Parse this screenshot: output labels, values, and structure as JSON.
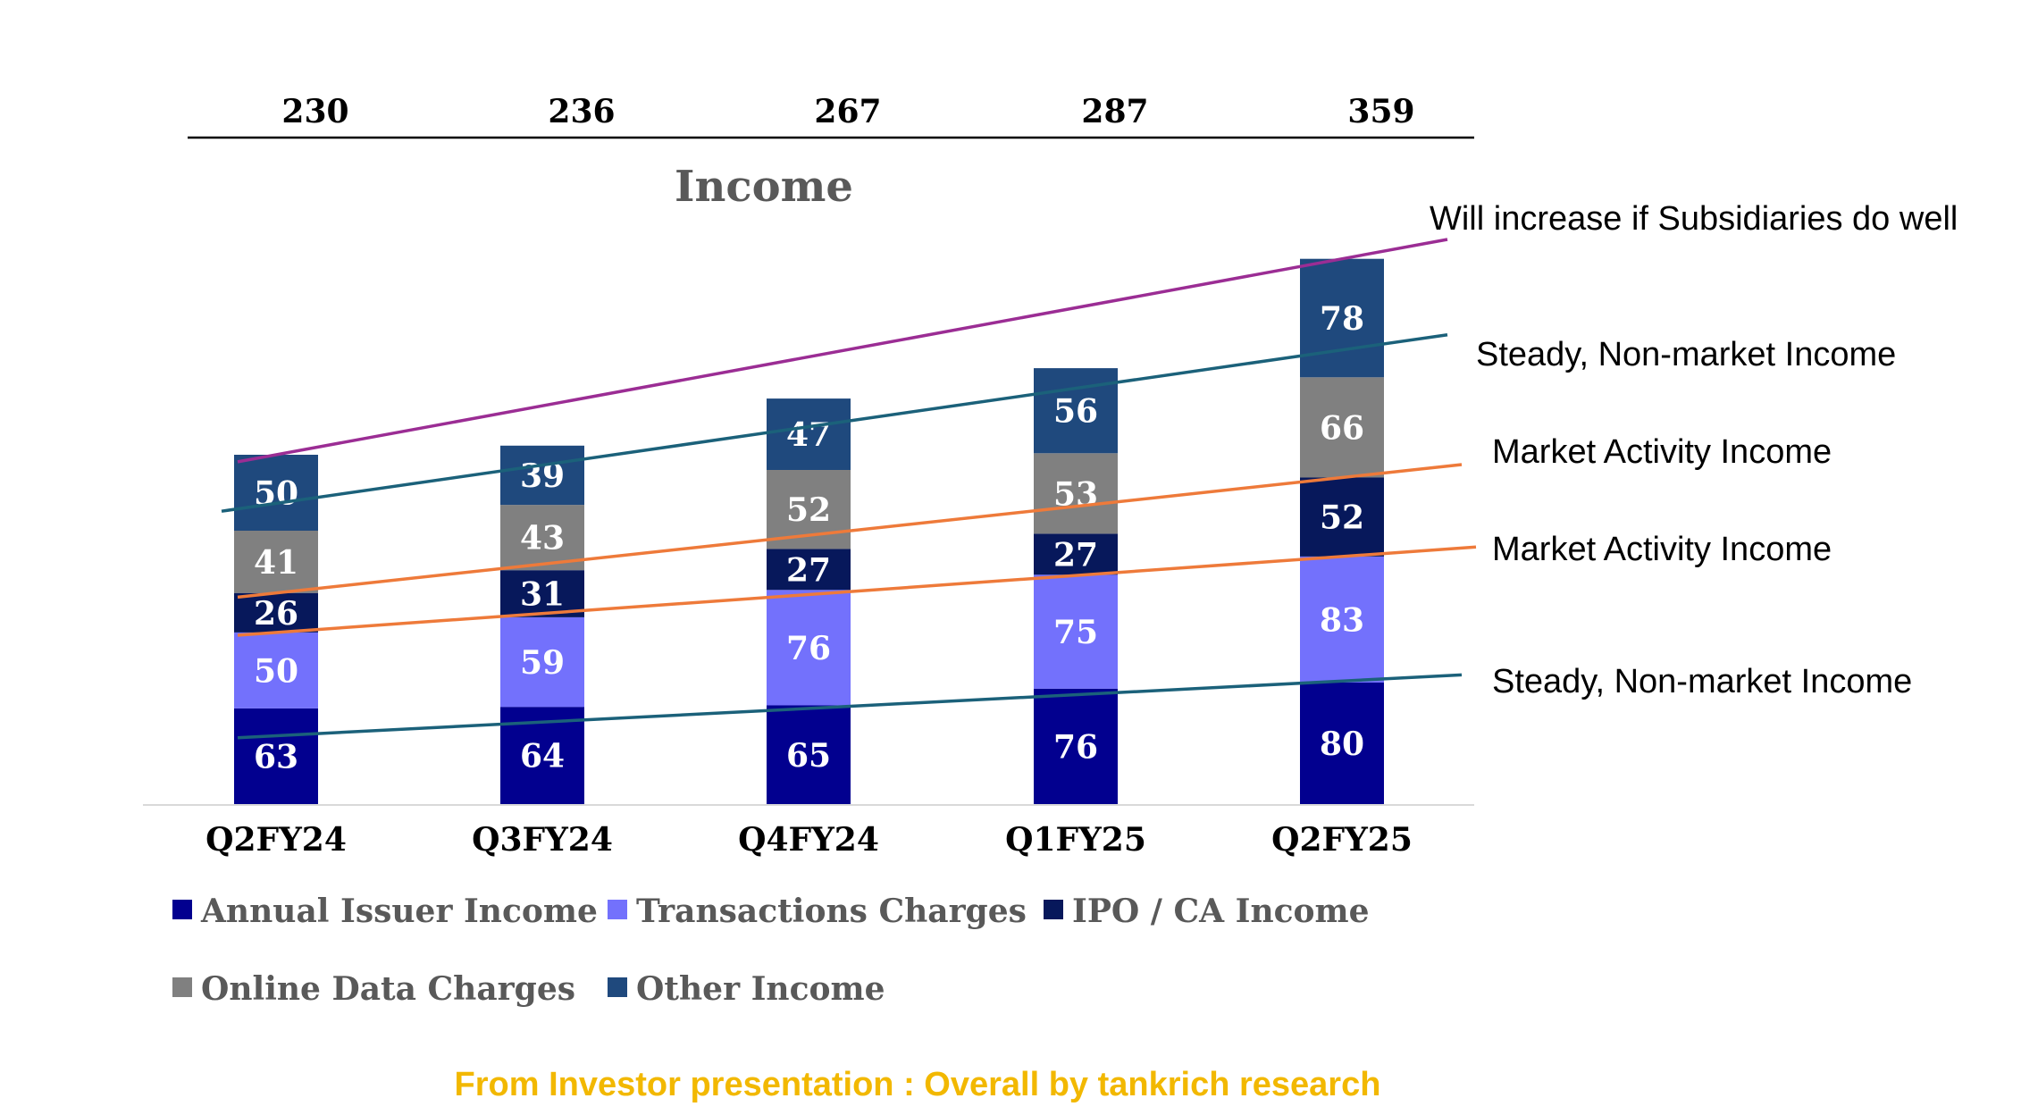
{
  "colors": {
    "annual": "#02008f",
    "transactions": "#7371fc",
    "ipo": "#07185b",
    "online": "#808080",
    "other": "#1f497d",
    "trend_purple": "#9b2d94",
    "trend_teal": "#1b617a",
    "trend_orange": "#ee7a3a",
    "caption": "#f2b800"
  },
  "chart_data": {
    "type": "bar",
    "stacked": true,
    "title": "Income",
    "categories": [
      "Q2FY24",
      "Q3FY24",
      "Q4FY24",
      "Q1FY25",
      "Q2FY25"
    ],
    "totals": [
      "230",
      "236",
      "267",
      "287",
      "359"
    ],
    "series": [
      {
        "name": "Annual Issuer Income",
        "color_key": "annual",
        "values": [
          63,
          64,
          65,
          76,
          80
        ]
      },
      {
        "name": "Transactions Charges",
        "color_key": "transactions",
        "values": [
          50,
          59,
          76,
          75,
          83
        ]
      },
      {
        "name": "IPO / CA Income",
        "color_key": "ipo",
        "values": [
          26,
          31,
          27,
          27,
          52
        ]
      },
      {
        "name": "Online Data Charges",
        "color_key": "online",
        "values": [
          41,
          43,
          52,
          53,
          66
        ]
      },
      {
        "name": "Other Income",
        "color_key": "other",
        "values": [
          50,
          39,
          47,
          56,
          78
        ]
      }
    ],
    "legend_position": "bottom",
    "grid": false,
    "annotations": [
      "Will increase if Subsidiaries do well",
      "Steady, Non-market Income",
      "Market Activity Income",
      "Market Activity Income",
      "Steady, Non-market Income"
    ]
  },
  "caption": "From Investor presentation : Overall by tankrich research"
}
